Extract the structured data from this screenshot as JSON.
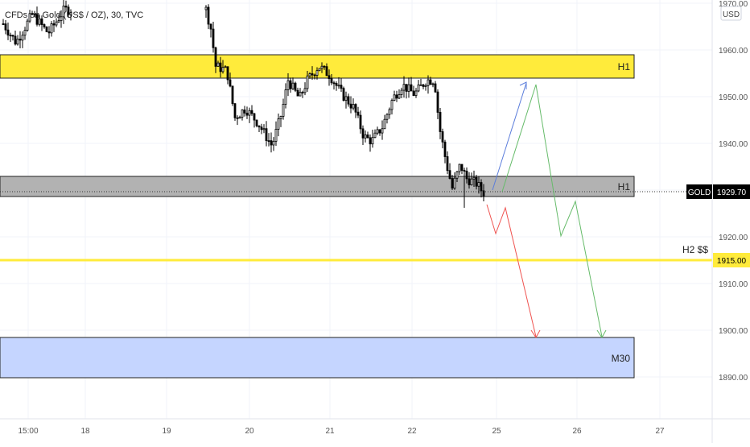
{
  "header": {
    "symbol_title": "CFDs on Gold (US$ / OZ), 30, TVC"
  },
  "price_axis": {
    "currency": "USD",
    "ticks": [
      "1970.00",
      "1960.00",
      "1950.00",
      "1940.00",
      "1930.00",
      "1920.00",
      "1910.00",
      "1900.00",
      "1890.00"
    ],
    "last_price_symbol": "GOLD",
    "last_price_value": "1929.70",
    "level_value": "1915.00"
  },
  "time_axis": {
    "ticks": [
      "15:00",
      "18",
      "19",
      "20",
      "21",
      "22",
      "25",
      "26",
      "27"
    ]
  },
  "zones": {
    "h1_upper_label": "H1",
    "h1_lower_label": "H1",
    "m30_label": "M30",
    "h2_label": "H2 $$"
  },
  "colors": {
    "background": "#ffffff",
    "yellow_zone": "#ffeb3b",
    "gray_zone": "#b2b2b2",
    "blue_zone": "#c5d5ff",
    "level_line": "#ffeb3b",
    "blue_arrow": "#5b7ddb",
    "green_arrow": "#66bb6a",
    "red_arrow": "#ef5350",
    "candles": "#000000",
    "grid": "#f0f3fa"
  },
  "chart_data": {
    "type": "candlestick",
    "title": "CFDs on Gold (US$ / OZ), 30, TVC",
    "ylim": [
      1886,
      1971
    ],
    "ylabel": "USD",
    "x_ticks": [
      "15:00",
      "18",
      "19",
      "20",
      "21",
      "22",
      "25",
      "26",
      "27"
    ],
    "last_price": 1929.7,
    "zones": [
      {
        "label": "H1",
        "from": 1954.5,
        "to": 1959.5,
        "color": "yellow"
      },
      {
        "label": "H1",
        "from": 1928.5,
        "to": 1933.0,
        "color": "gray"
      },
      {
        "label": "M30",
        "from": 1890.5,
        "to": 1899.0,
        "color": "blue"
      }
    ],
    "levels": [
      {
        "label": "H2 $$",
        "value": 1915.0
      }
    ],
    "price_path": [
      {
        "x": "15:00",
        "price": 1966
      },
      {
        "x": "18",
        "price": 1968
      },
      {
        "x": "19",
        "price": 1965
      },
      {
        "x": "19.5",
        "price": 1957
      },
      {
        "x": "20",
        "price": 1946
      },
      {
        "x": "20.3",
        "price": 1941
      },
      {
        "x": "20.5",
        "price": 1952
      },
      {
        "x": "21",
        "price": 1956
      },
      {
        "x": "21.3",
        "price": 1950
      },
      {
        "x": "21.6",
        "price": 1942
      },
      {
        "x": "22",
        "price": 1952
      },
      {
        "x": "22.3",
        "price": 1955
      },
      {
        "x": "22.5",
        "price": 1937
      },
      {
        "x": "22.9",
        "price": 1929.7
      }
    ],
    "projections": [
      {
        "color": "blue",
        "points": [
          {
            "x": "25.0",
            "price": 1930
          },
          {
            "x": "25.4",
            "price": 1953
          }
        ]
      },
      {
        "color": "green",
        "points": [
          {
            "x": "25.1",
            "price": 1930
          },
          {
            "x": "25.5",
            "price": 1952
          },
          {
            "x": "25.8",
            "price": 1920
          },
          {
            "x": "26.0",
            "price": 1926
          },
          {
            "x": "26.3",
            "price": 1899
          }
        ]
      },
      {
        "color": "red",
        "points": [
          {
            "x": "24.9",
            "price": 1926
          },
          {
            "x": "25.0",
            "price": 1922
          },
          {
            "x": "25.1",
            "price": 1926
          },
          {
            "x": "25.5",
            "price": 1899
          }
        ]
      }
    ]
  }
}
